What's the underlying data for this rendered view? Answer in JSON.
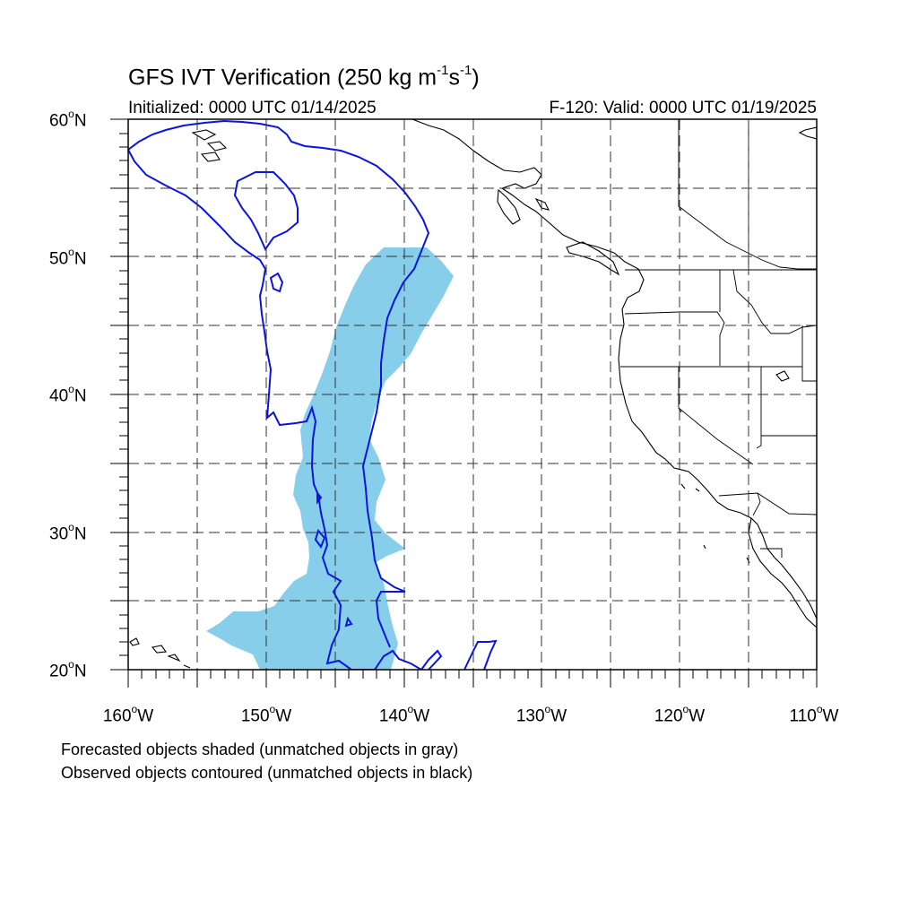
{
  "title": {
    "main": "GFS IVT Verification (250 kg m",
    "exp1": "-1",
    "middle": "s",
    "exp2": "-1",
    "close": ")"
  },
  "initialized": "Initialized: 0000 UTC 01/14/2025",
  "valid": "F-120: Valid: 0000 UTC 01/19/2025",
  "map": {
    "lon_range": [
      -160,
      -110
    ],
    "lat_range": [
      20,
      60
    ],
    "lat_ticks": [
      {
        "value": "60",
        "unit": "N"
      },
      {
        "value": "50",
        "unit": "N"
      },
      {
        "value": "40",
        "unit": "N"
      },
      {
        "value": "30",
        "unit": "N"
      },
      {
        "value": "20",
        "unit": "N"
      }
    ],
    "lon_ticks": [
      {
        "value": "160",
        "unit": "W"
      },
      {
        "value": "150",
        "unit": "W"
      },
      {
        "value": "140",
        "unit": "W"
      },
      {
        "value": "130",
        "unit": "W"
      },
      {
        "value": "120",
        "unit": "W"
      },
      {
        "value": "110",
        "unit": "W"
      }
    ],
    "gridlines": "dashed every 5 degrees",
    "forecast_fill_color": "#87ceea",
    "observed_contour_color": "#0a14e0",
    "coastline_color": "#000000"
  },
  "legend": {
    "line1": "Forecasted objects shaded (unmatched objects in gray)",
    "line2": "Observed objects contoured (unmatched objects in black)"
  }
}
